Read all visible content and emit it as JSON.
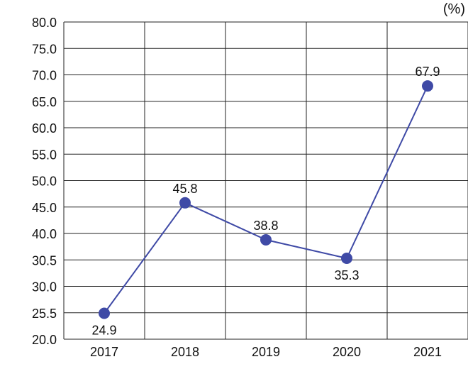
{
  "chart_data": {
    "type": "line",
    "unit_label": "(%)",
    "categories": [
      "2017",
      "2018",
      "2019",
      "2020",
      "2021"
    ],
    "values": [
      24.9,
      45.8,
      38.8,
      35.3,
      67.9
    ],
    "data_labels": [
      "24.9",
      "45.8",
      "38.8",
      "35.3",
      "67.9"
    ],
    "label_position": [
      "below",
      "above",
      "above",
      "below",
      "above"
    ],
    "ytick_labels": [
      "20.0",
      "25.5",
      "30.0",
      "30.5",
      "40.0",
      "45.0",
      "50.0",
      "55.0",
      "60.0",
      "65.0",
      "70.0",
      "75.0",
      "80.0"
    ],
    "ylim": [
      20.0,
      80.0
    ],
    "grid": true,
    "colors": {
      "line": "#3f4aa6",
      "marker": "#3f4aa6",
      "grid": "#222222"
    }
  }
}
